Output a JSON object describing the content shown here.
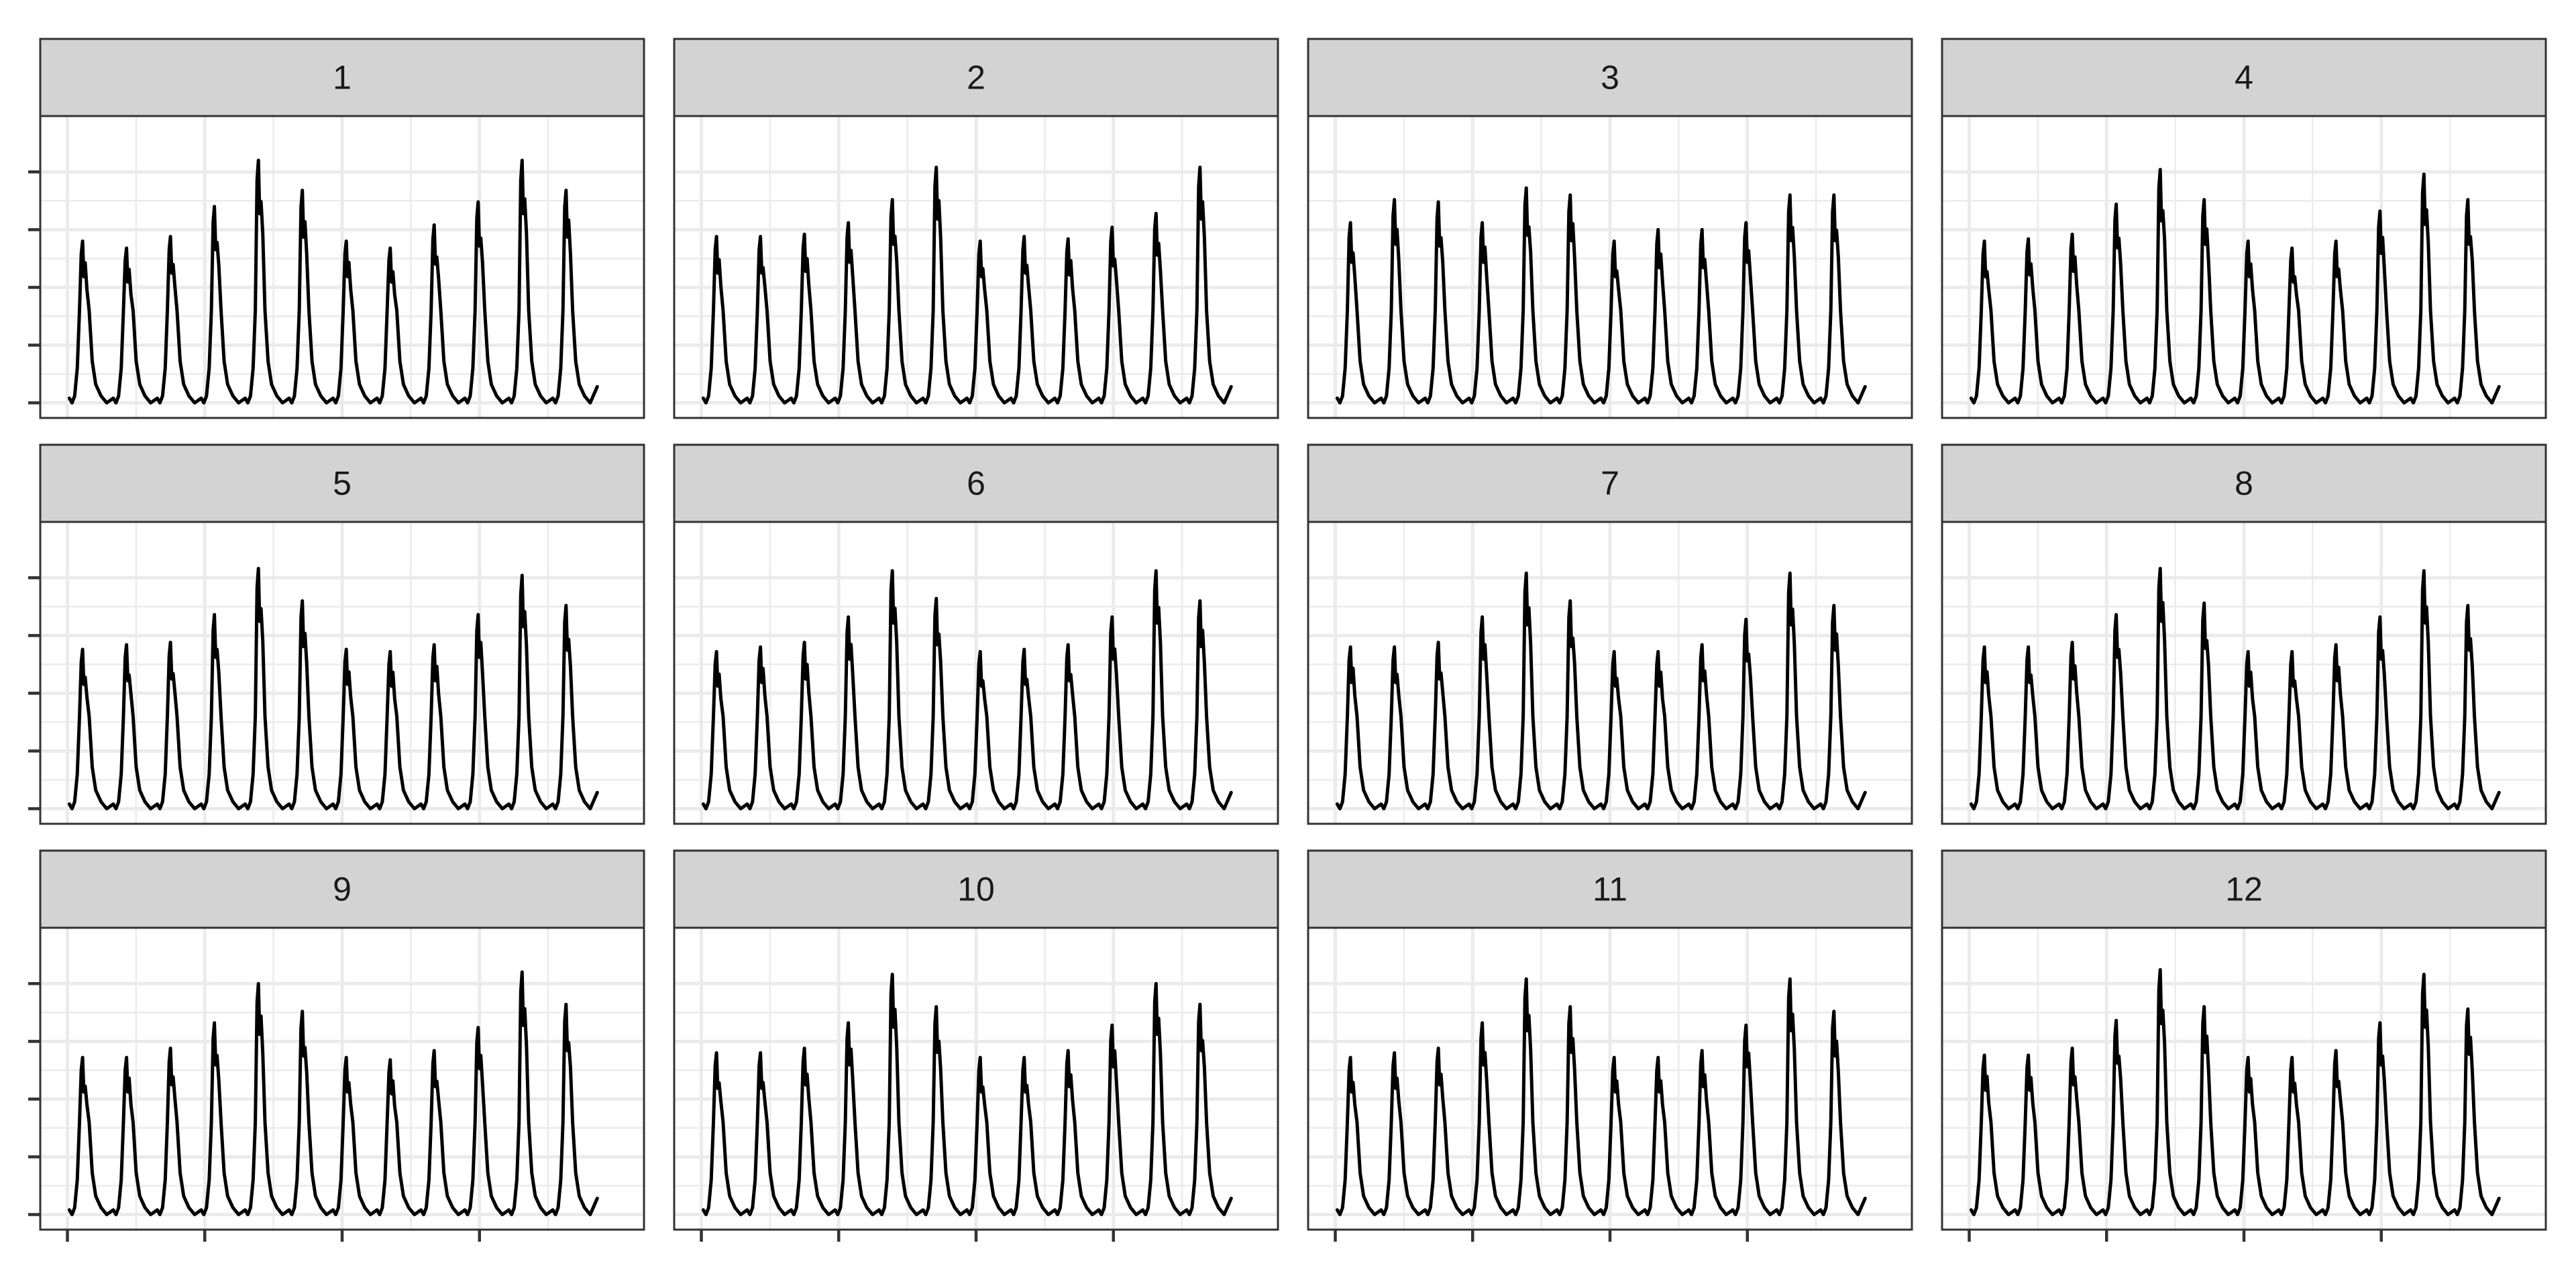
{
  "chart_data": {
    "type": "line",
    "layout": "facet-grid 3 rows x 4 columns",
    "title": "",
    "xlabel": "",
    "ylabel": "",
    "grid": true,
    "theme": "bw",
    "line_color": "#000000",
    "strip_color": "#d3d3d3",
    "x_ticks_shown_on": "bottom row only",
    "y_ticks_shown_on": "left column only",
    "ylim": [
      0,
      1
    ],
    "x_range": [
      0,
      14
    ],
    "panels": [
      {
        "label": "1",
        "peaks": [
          0.7,
          0.67,
          0.72,
          0.85,
          1.05,
          0.92,
          0.7,
          0.67,
          0.77,
          0.87,
          1.05,
          0.92
        ]
      },
      {
        "label": "2",
        "peaks": [
          0.72,
          0.72,
          0.73,
          0.78,
          0.88,
          1.02,
          0.7,
          0.72,
          0.71,
          0.76,
          0.82,
          1.02
        ]
      },
      {
        "label": "3",
        "peaks": [
          0.78,
          0.88,
          0.87,
          0.78,
          0.93,
          0.9,
          0.7,
          0.75,
          0.75,
          0.78,
          0.9,
          0.9
        ]
      },
      {
        "label": "4",
        "peaks": [
          0.7,
          0.71,
          0.73,
          0.86,
          1.01,
          0.88,
          0.7,
          0.67,
          0.7,
          0.83,
          0.99,
          0.88
        ]
      },
      {
        "label": "5",
        "peaks": [
          0.69,
          0.71,
          0.72,
          0.84,
          1.04,
          0.9,
          0.69,
          0.68,
          0.71,
          0.84,
          1.01,
          0.88
        ]
      },
      {
        "label": "6",
        "peaks": [
          0.68,
          0.7,
          0.72,
          0.83,
          1.03,
          0.91,
          0.68,
          0.69,
          0.71,
          0.83,
          1.03,
          0.9
        ]
      },
      {
        "label": "7",
        "peaks": [
          0.7,
          0.7,
          0.72,
          0.83,
          1.02,
          0.9,
          0.68,
          0.68,
          0.71,
          0.82,
          1.02,
          0.88
        ]
      },
      {
        "label": "8",
        "peaks": [
          0.7,
          0.7,
          0.72,
          0.84,
          1.04,
          0.89,
          0.68,
          0.68,
          0.71,
          0.83,
          1.03,
          0.88
        ]
      },
      {
        "label": "9",
        "peaks": [
          0.68,
          0.68,
          0.72,
          0.83,
          1.0,
          0.88,
          0.68,
          0.67,
          0.71,
          0.81,
          1.05,
          0.91
        ]
      },
      {
        "label": "10",
        "peaks": [
          0.7,
          0.7,
          0.72,
          0.83,
          1.04,
          0.9,
          0.68,
          0.68,
          0.71,
          0.82,
          1.0,
          0.91
        ]
      },
      {
        "label": "11",
        "peaks": [
          0.68,
          0.7,
          0.72,
          0.83,
          1.02,
          0.9,
          0.68,
          0.68,
          0.71,
          0.82,
          1.02,
          0.88
        ]
      },
      {
        "label": "12",
        "peaks": [
          0.69,
          0.69,
          0.72,
          0.84,
          1.06,
          0.9,
          0.68,
          0.68,
          0.71,
          0.83,
          1.04,
          0.89
        ]
      }
    ]
  }
}
